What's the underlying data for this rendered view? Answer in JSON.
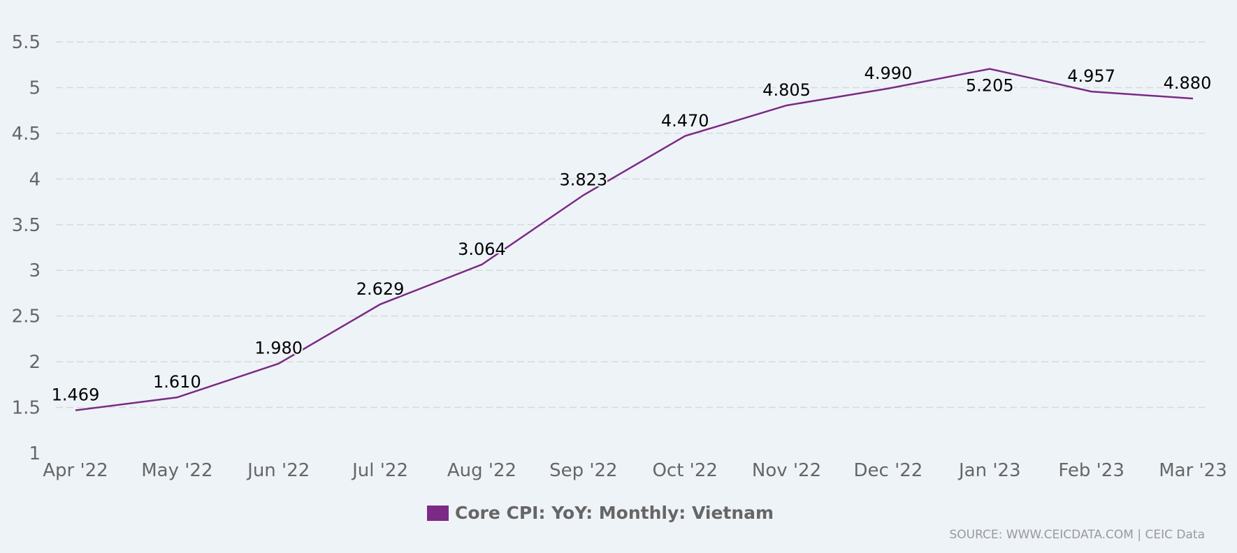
{
  "chart_data": {
    "type": "line",
    "title": "",
    "xlabel": "",
    "ylabel": "",
    "categories": [
      "Apr '22",
      "May '22",
      "Jun '22",
      "Jul '22",
      "Aug '22",
      "Sep '22",
      "Oct '22",
      "Nov '22",
      "Dec '22",
      "Jan '23",
      "Feb '23",
      "Mar '23"
    ],
    "series": [
      {
        "name": "Core CPI: YoY: Monthly: Vietnam",
        "values": [
          1.469,
          1.61,
          1.98,
          2.629,
          3.064,
          3.823,
          4.47,
          4.805,
          4.99,
          5.205,
          4.957,
          4.88
        ],
        "labels": [
          "1.469",
          "1.610",
          "1.980",
          "2.629",
          "3.064",
          "3.823",
          "4.470",
          "4.805",
          "4.990",
          "5.205",
          "4.957",
          "4.880"
        ],
        "color": "#7b2a85"
      }
    ],
    "yticks": [
      "1",
      "1.5",
      "2",
      "2.5",
      "3",
      "3.5",
      "4",
      "4.5",
      "5",
      "5.5"
    ],
    "ylim": [
      1,
      5.5
    ],
    "grid": true,
    "legend_position": "bottom-center",
    "source": "SOURCE: WWW.CEICDATA.COM | CEIC Data"
  },
  "colors": {
    "background": "#eef3f8",
    "grid": "#d9d9d9",
    "line": "#7b2a85"
  }
}
